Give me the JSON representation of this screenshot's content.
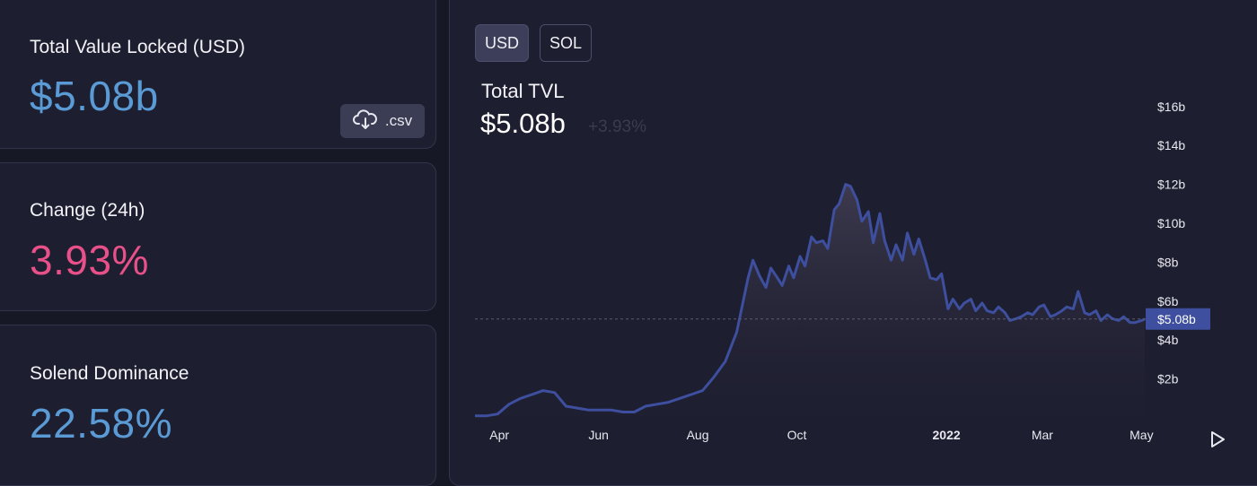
{
  "stats": {
    "tvl": {
      "label": "Total Value Locked (USD)",
      "value": "$5.08b",
      "color": "#5b9bd5"
    },
    "change": {
      "label": "Change (24h)",
      "value": "3.93%",
      "color": "#e8508a"
    },
    "dominance": {
      "label": "Solend Dominance",
      "value": "22.58%",
      "color": "#5b9bd5"
    },
    "csv_label": ".csv",
    "csv_icon": "cloud-download-icon"
  },
  "toggles": {
    "usd": "USD",
    "sol": "SOL",
    "active": "USD"
  },
  "chart": {
    "title": "Total TVL",
    "value": "$5.08b",
    "change": "+3.93%",
    "current_label": "$5.08b",
    "play_icon": "play-icon"
  },
  "chart_data": {
    "type": "area",
    "title": "Total TVL",
    "line_color": "#3d4f9e",
    "ylim": [
      0,
      17
    ],
    "y_ticks": [
      {
        "value": 2,
        "label": "$2b"
      },
      {
        "value": 4,
        "label": "$4b"
      },
      {
        "value": 6,
        "label": "$6b"
      },
      {
        "value": 8,
        "label": "$8b"
      },
      {
        "value": 10,
        "label": "$10b"
      },
      {
        "value": 12,
        "label": "$12b"
      },
      {
        "value": 14,
        "label": "$14b"
      },
      {
        "value": 16,
        "label": "$16b"
      }
    ],
    "x_ticks": [
      {
        "x": "2021-04-01",
        "label": "Apr"
      },
      {
        "x": "2021-06-01",
        "label": "Jun"
      },
      {
        "x": "2021-08-01",
        "label": "Aug"
      },
      {
        "x": "2021-10-01",
        "label": "Oct"
      },
      {
        "x": "2022-01-01",
        "label": "2022"
      },
      {
        "x": "2022-03-01",
        "label": "Mar"
      },
      {
        "x": "2022-05-01",
        "label": "May"
      }
    ],
    "current_value": 5.08,
    "series": [
      {
        "x": [
          "2021-03-17",
          "2021-03-24",
          "2021-03-31",
          "2021-04-07",
          "2021-04-14",
          "2021-04-21",
          "2021-04-28",
          "2021-05-05",
          "2021-05-12",
          "2021-05-19",
          "2021-05-26",
          "2021-06-02",
          "2021-06-09",
          "2021-06-16",
          "2021-06-23",
          "2021-06-30",
          "2021-07-07",
          "2021-07-14",
          "2021-07-21",
          "2021-07-28",
          "2021-08-04",
          "2021-08-11",
          "2021-08-18",
          "2021-08-25",
          "2021-09-01",
          "2021-09-04",
          "2021-09-08",
          "2021-09-12",
          "2021-09-15",
          "2021-09-19",
          "2021-09-22",
          "2021-09-26",
          "2021-09-29",
          "2021-10-03",
          "2021-10-06",
          "2021-10-10",
          "2021-10-13",
          "2021-10-17",
          "2021-10-20",
          "2021-10-24",
          "2021-10-27",
          "2021-10-31",
          "2021-11-03",
          "2021-11-07",
          "2021-11-10",
          "2021-11-14",
          "2021-11-17",
          "2021-11-21",
          "2021-11-24",
          "2021-11-28",
          "2021-12-01",
          "2021-12-05",
          "2021-12-08",
          "2021-12-12",
          "2021-12-15",
          "2021-12-19",
          "2021-12-22",
          "2021-12-26",
          "2021-12-29",
          "2022-01-02",
          "2022-01-05",
          "2022-01-09",
          "2022-01-12",
          "2022-01-16",
          "2022-01-19",
          "2022-01-23",
          "2022-01-26",
          "2022-01-30",
          "2022-02-02",
          "2022-02-06",
          "2022-02-09",
          "2022-02-13",
          "2022-02-16",
          "2022-02-20",
          "2022-02-23",
          "2022-02-27",
          "2022-03-02",
          "2022-03-06",
          "2022-03-09",
          "2022-03-13",
          "2022-03-16",
          "2022-03-20",
          "2022-03-23",
          "2022-03-27",
          "2022-03-30",
          "2022-04-03",
          "2022-04-06",
          "2022-04-10",
          "2022-04-13",
          "2022-04-17",
          "2022-04-20",
          "2022-04-24",
          "2022-04-27",
          "2022-05-01",
          "2022-05-03"
        ],
        "values": [
          0.1,
          0.1,
          0.2,
          0.7,
          1.0,
          1.2,
          1.4,
          1.3,
          0.6,
          0.5,
          0.4,
          0.4,
          0.4,
          0.3,
          0.3,
          0.6,
          0.7,
          0.8,
          1.0,
          1.2,
          1.4,
          2.1,
          2.9,
          4.4,
          7.2,
          8.1,
          7.3,
          6.7,
          7.7,
          7.2,
          6.8,
          7.8,
          7.2,
          8.3,
          7.8,
          9.3,
          9.0,
          9.1,
          8.7,
          10.7,
          11.0,
          12.0,
          11.9,
          11.2,
          10.1,
          10.6,
          9.0,
          10.5,
          9.1,
          8.1,
          8.9,
          8.1,
          9.5,
          8.4,
          9.2,
          8.1,
          7.2,
          7.1,
          7.4,
          5.6,
          6.1,
          5.6,
          5.9,
          6.1,
          5.5,
          5.9,
          5.5,
          5.4,
          5.7,
          5.4,
          5.0,
          5.1,
          5.2,
          5.4,
          5.3,
          5.7,
          5.8,
          5.2,
          5.3,
          5.5,
          5.7,
          5.6,
          6.5,
          5.4,
          5.3,
          5.5,
          5.0,
          5.3,
          5.1,
          5.0,
          5.2,
          4.9,
          4.9,
          5.0,
          5.08
        ]
      }
    ]
  }
}
